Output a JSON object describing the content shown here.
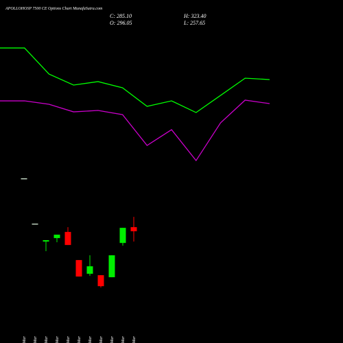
{
  "chart_data": [
    {
      "type": "candlestick",
      "title": "APOLLOHOSP 7500 CE Options Chart MunafaSutra.com",
      "ohlc_labels": [
        "C: 285.10",
        "O: 296.05",
        "H: 323.40",
        "L: 257.65"
      ],
      "categories": [
        "10 Mar",
        "12 Mar",
        "16 Mar",
        "17 Mar",
        "18 Mar",
        "19 Mar",
        "20 Mar",
        "23 Mar",
        "24 Mar",
        "25 Mar",
        "27 Mar"
      ],
      "open": [
        425.6,
        305.2,
        257.7,
        266.9,
        283.3,
        208.5,
        172.0,
        168.3,
        162.9,
        254.0,
        296.05
      ],
      "high": [
        425.6,
        305.2,
        261.4,
        276.0,
        296.1,
        208.5,
        221.2,
        168.3,
        221.2,
        294.2,
        323.4
      ],
      "low": [
        425.6,
        305.2,
        232.2,
        255.9,
        248.6,
        164.7,
        166.5,
        135.5,
        162.9,
        246.8,
        257.65
      ],
      "close": [
        425.6,
        305.2,
        261.4,
        276.0,
        248.6,
        164.7,
        192.0,
        139.1,
        221.2,
        294.2,
        285.1
      ],
      "up_color": "#00ee00",
      "down_color": "#ff0000",
      "flat_color": "#e8ffe8",
      "ylim": [
        -12,
        900
      ]
    },
    {
      "type": "line",
      "categories": [
        null,
        null,
        null,
        null,
        null,
        null,
        null,
        null,
        null,
        null,
        null,
        null
      ],
      "series": [
        {
          "color": "#00ff00",
          "values": [
            772.4,
            772.4,
            703.0,
            673.8,
            683.0,
            666.5,
            617.2,
            631.8,
            600.8,
            646.4,
            692.1,
            688.4
          ]
        },
        {
          "color": "#cc00cc",
          "values": [
            631.8,
            631.8,
            622.7,
            602.6,
            606.3,
            595.3,
            513.2,
            555.2,
            473.1,
            573.4,
            633.7,
            624.5
          ]
        }
      ],
      "ylim": [
        -12,
        900
      ]
    }
  ]
}
